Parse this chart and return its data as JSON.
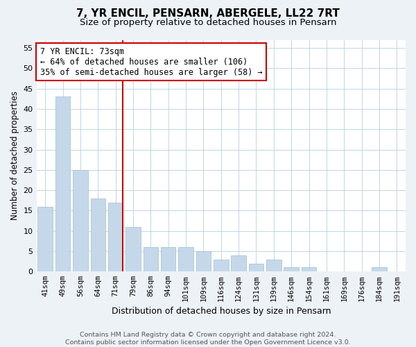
{
  "title": "7, YR ENCIL, PENSARN, ABERGELE, LL22 7RT",
  "subtitle": "Size of property relative to detached houses in Pensarn",
  "xlabel": "Distribution of detached houses by size in Pensarn",
  "ylabel": "Number of detached properties",
  "categories": [
    "41sqm",
    "49sqm",
    "56sqm",
    "64sqm",
    "71sqm",
    "79sqm",
    "86sqm",
    "94sqm",
    "101sqm",
    "109sqm",
    "116sqm",
    "124sqm",
    "131sqm",
    "139sqm",
    "146sqm",
    "154sqm",
    "161sqm",
    "169sqm",
    "176sqm",
    "184sqm",
    "191sqm"
  ],
  "values": [
    16,
    43,
    25,
    18,
    17,
    11,
    6,
    6,
    6,
    5,
    3,
    4,
    2,
    3,
    1,
    1,
    0,
    0,
    0,
    1,
    0
  ],
  "bar_color": "#c5d8ea",
  "bar_edgecolor": "#a0bcd0",
  "vline_index": 4,
  "vline_color": "#cc0000",
  "annotation_line1": "7 YR ENCIL: 73sqm",
  "annotation_line2": "← 64% of detached houses are smaller (106)",
  "annotation_line3": "35% of semi-detached houses are larger (58) →",
  "annotation_box_edgecolor": "#cc0000",
  "ylim_max": 57,
  "yticks": [
    0,
    5,
    10,
    15,
    20,
    25,
    30,
    35,
    40,
    45,
    50,
    55
  ],
  "footer": "Contains HM Land Registry data © Crown copyright and database right 2024.\nContains public sector information licensed under the Open Government Licence v3.0.",
  "bg_color": "#edf2f7"
}
